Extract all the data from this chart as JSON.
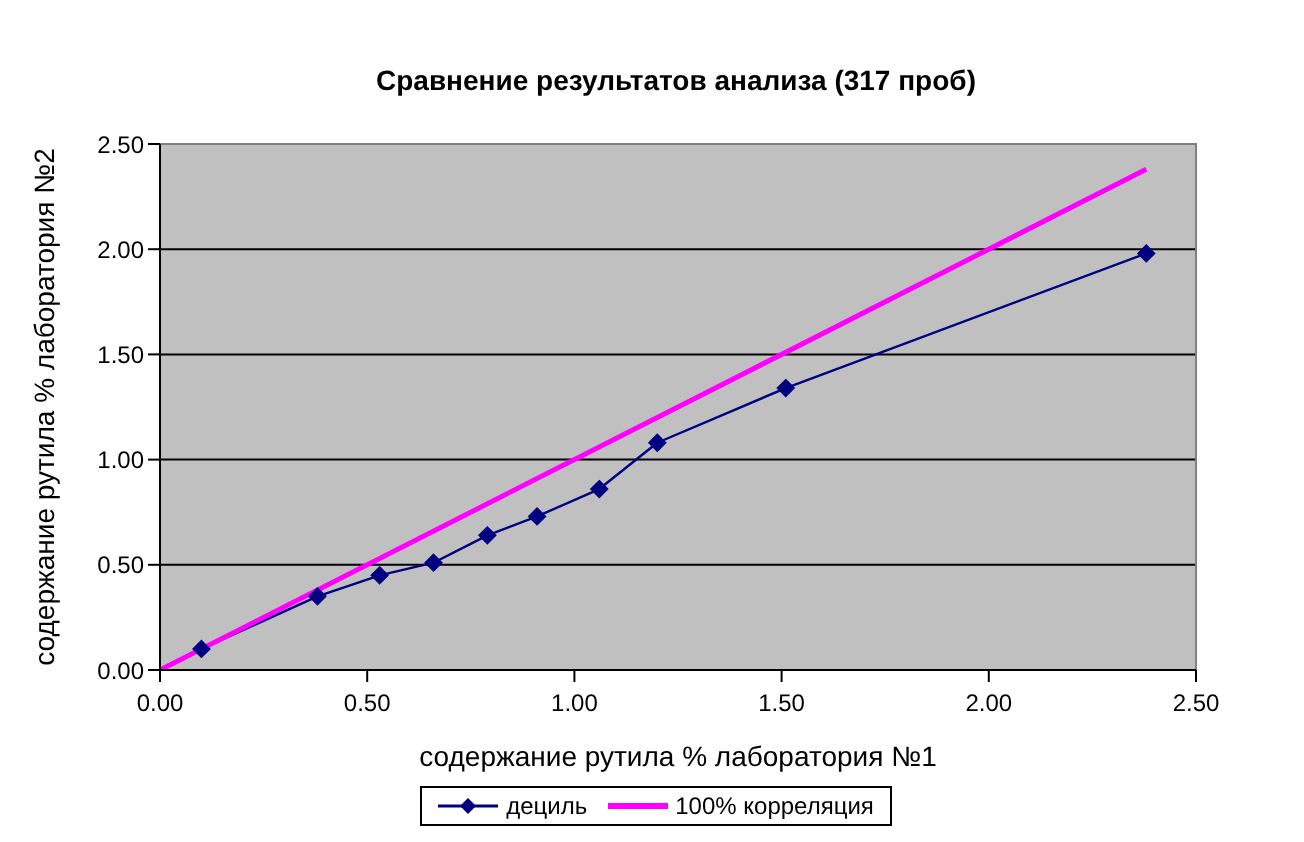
{
  "chart_data": {
    "type": "line",
    "title": "Сравнение результатов анализа (317 проб)",
    "xlabel": "содержание рутила % лаборатория №1",
    "ylabel": "содержание рутила % лаборатория №2",
    "xlim": [
      0,
      2.5
    ],
    "xticks": [
      {
        "value": 0,
        "label": "0.00"
      },
      {
        "value": 0.5,
        "label": "0.50"
      },
      {
        "value": 1,
        "label": "1.00"
      },
      {
        "value": 1.5,
        "label": "1.50"
      },
      {
        "value": 2,
        "label": "2.00"
      },
      {
        "value": 2.5,
        "label": "2.50"
      }
    ],
    "ylim": [
      0,
      2.5
    ],
    "yticks": [
      {
        "value": 0,
        "label": "0.00"
      },
      {
        "value": 0.5,
        "label": "0.50"
      },
      {
        "value": 1,
        "label": "1.00"
      },
      {
        "value": 1.5,
        "label": "1.50"
      },
      {
        "value": 2,
        "label": "2.00"
      },
      {
        "value": 2.5,
        "label": "2.50"
      }
    ],
    "grid": "y",
    "legend": "bottom",
    "series": [
      {
        "name": "дециль",
        "color": "#000080",
        "marker": "diamond",
        "x": [
          0.1,
          0.38,
          0.53,
          0.66,
          0.79,
          0.91,
          1.06,
          1.2,
          1.51,
          2.38
        ],
        "values": [
          0.1,
          0.35,
          0.45,
          0.51,
          0.64,
          0.73,
          0.86,
          1.08,
          1.34,
          1.98
        ]
      },
      {
        "name": "100% корреляция",
        "color": "#ff00ff",
        "marker": "none",
        "x": [
          0,
          2.38
        ],
        "values": [
          0,
          2.38
        ]
      }
    ]
  }
}
